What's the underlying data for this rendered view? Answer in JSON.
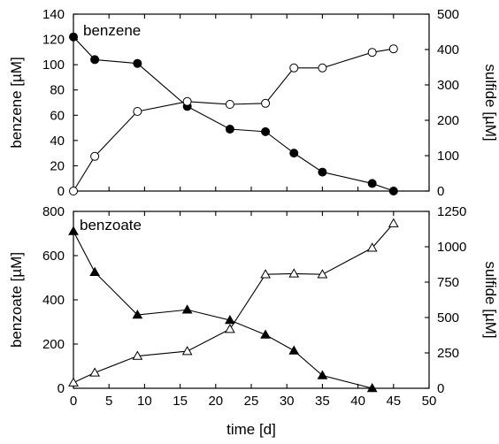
{
  "chart_data": [
    {
      "type": "line",
      "panel_label": "benzene",
      "xlabel": "",
      "xlim": [
        0,
        50
      ],
      "x_ticks": [
        0,
        5,
        10,
        15,
        20,
        25,
        30,
        35,
        40,
        45,
        50
      ],
      "ylabel_left": "benzene [µM]",
      "ylim_left": [
        0,
        140
      ],
      "y_ticks_left": [
        0,
        20,
        40,
        60,
        80,
        100,
        120,
        140
      ],
      "ylabel_right": "sulfide [µM]",
      "ylim_right": [
        0,
        500
      ],
      "y_ticks_right": [
        0,
        100,
        200,
        300,
        400,
        500
      ],
      "series": [
        {
          "axis": "left",
          "marker": "filled-circle",
          "x": [
            0,
            3,
            9,
            16,
            22,
            27,
            31,
            35,
            42,
            45
          ],
          "y": [
            122,
            104,
            101,
            67,
            49,
            47,
            30,
            15,
            6,
            0
          ]
        },
        {
          "axis": "right",
          "marker": "open-circle",
          "x": [
            0,
            3,
            9,
            16,
            22,
            27,
            31,
            35,
            42,
            45
          ],
          "y": [
            0,
            98,
            225,
            253,
            245,
            248,
            348,
            348,
            392,
            402
          ]
        }
      ]
    },
    {
      "type": "line",
      "panel_label": "benzoate",
      "xlabel": "time [d]",
      "xlim": [
        0,
        50
      ],
      "x_ticks": [
        0,
        5,
        10,
        15,
        20,
        25,
        30,
        35,
        40,
        45,
        50
      ],
      "ylabel_left": "benzoate [µM]",
      "ylim_left": [
        0,
        800
      ],
      "y_ticks_left": [
        0,
        200,
        400,
        600,
        800
      ],
      "ylabel_right": "sulfide [µM]",
      "ylim_right": [
        0,
        1250
      ],
      "y_ticks_right": [
        0,
        250,
        500,
        750,
        1000,
        1250
      ],
      "series": [
        {
          "axis": "left",
          "marker": "filled-triangle",
          "x": [
            0,
            3,
            9,
            16,
            22,
            27,
            31,
            35,
            42
          ],
          "y": [
            710,
            525,
            332,
            355,
            308,
            242,
            170,
            58,
            0
          ]
        },
        {
          "axis": "right",
          "marker": "open-triangle",
          "x": [
            0,
            3,
            9,
            16,
            22,
            27,
            31,
            35,
            42,
            45
          ],
          "y": [
            40,
            110,
            228,
            262,
            418,
            805,
            810,
            805,
            992,
            1165
          ]
        }
      ]
    }
  ]
}
